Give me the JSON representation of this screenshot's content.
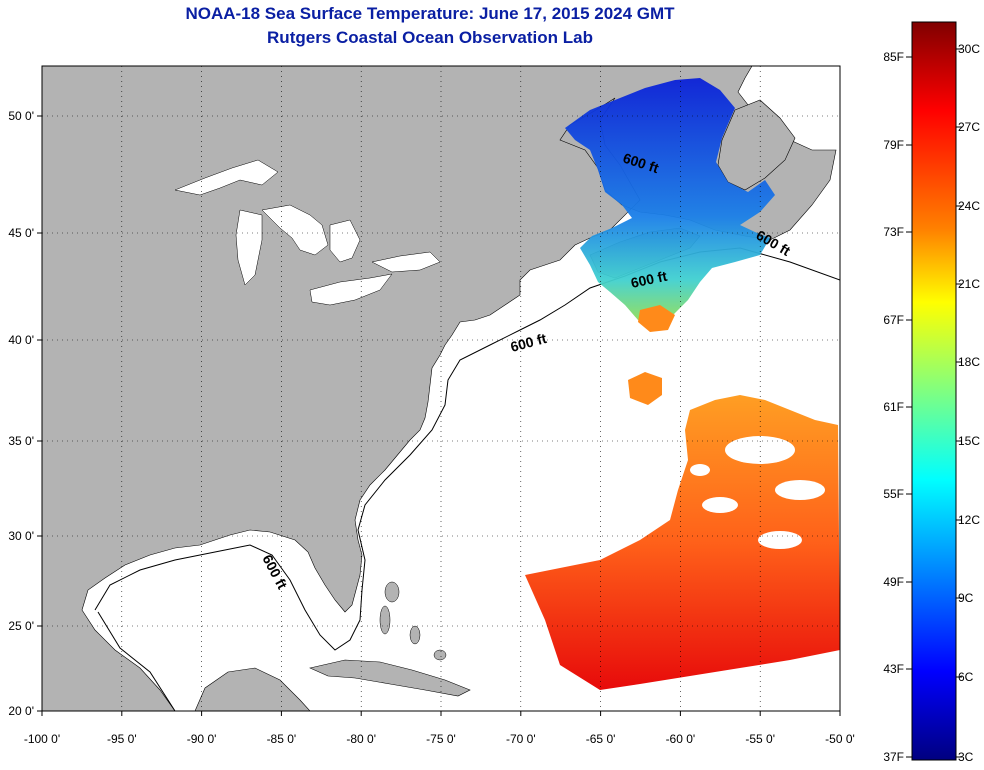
{
  "title": "NOAA-18 Sea Surface Temperature:  June 17, 2015 2024 GMT",
  "subtitle": "Rutgers Coastal Ocean Observation Lab",
  "map": {
    "lon_ticks": [
      "-100 0'",
      "-95 0'",
      "-90 0'",
      "-85 0'",
      "-80 0'",
      "-75 0'",
      "-70 0'",
      "-65 0'",
      "-60 0'",
      "-55 0'",
      "-50 0'"
    ],
    "lat_ticks": [
      "50 0'",
      "45 0'",
      "40 0'",
      "35 0'",
      "30 0'",
      "25 0'",
      "20 0'"
    ],
    "contour_label": "600 ft",
    "land_color": "#b3b3b3",
    "water_color": "#ffffff"
  },
  "colorbar": {
    "fahrenheit": [
      "85F",
      "79F",
      "73F",
      "67F",
      "61F",
      "55F",
      "49F",
      "43F",
      "37F"
    ],
    "celsius": [
      "30C",
      "27C",
      "24C",
      "21C",
      "18C",
      "15C",
      "12C",
      "9C",
      "6C",
      "3C"
    ],
    "colors": [
      "#800000",
      "#ff0000",
      "#ff8000",
      "#ffff00",
      "#80ff80",
      "#00ffff",
      "#0080ff",
      "#0000ff",
      "#000080"
    ]
  }
}
